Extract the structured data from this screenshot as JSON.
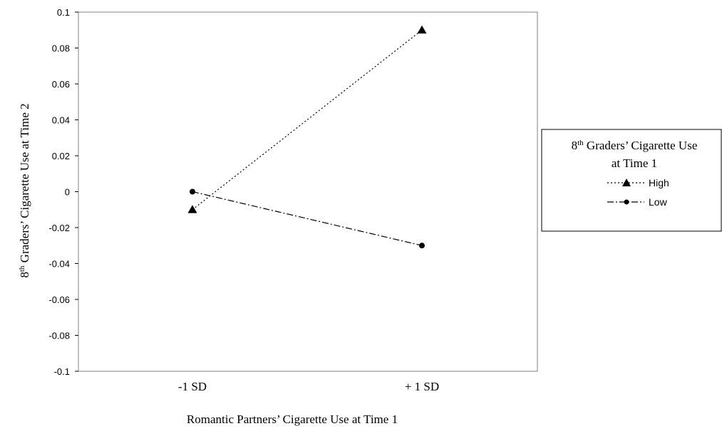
{
  "chart_data": {
    "type": "line",
    "categories": [
      "-1 SD",
      "+ 1 SD"
    ],
    "series": [
      {
        "name": "High",
        "values": [
          -0.01,
          0.09
        ],
        "marker": "triangle",
        "dash": "dotted",
        "color": "#000000"
      },
      {
        "name": "Low",
        "values": [
          0.0,
          -0.03
        ],
        "marker": "circle",
        "dash": "dash-dot",
        "color": "#000000"
      }
    ],
    "xlabel": "Romantic Partners’ Cigarette Use at Time 1",
    "ylabel": {
      "base": "8",
      "sup": "th",
      "rest": " Graders’ Cigarette Use at Time 2"
    },
    "ylim": [
      -0.1,
      0.1
    ],
    "yticks": [
      "0.1",
      "0.08",
      "0.06",
      "0.04",
      "0.02",
      "0",
      "-0.02",
      "-0.04",
      "-0.06",
      "-0.08",
      "-0.1"
    ],
    "ytick_values": [
      0.1,
      0.08,
      0.06,
      0.04,
      0.02,
      0,
      -0.02,
      -0.04,
      -0.06,
      -0.08,
      -0.1
    ],
    "grid": false,
    "legend": {
      "placement": "right",
      "title_line1_base": "8",
      "title_line1_sup": "th",
      "title_line1_rest": " Graders’ Cigarette Use",
      "title_line2": "at Time 1"
    }
  }
}
